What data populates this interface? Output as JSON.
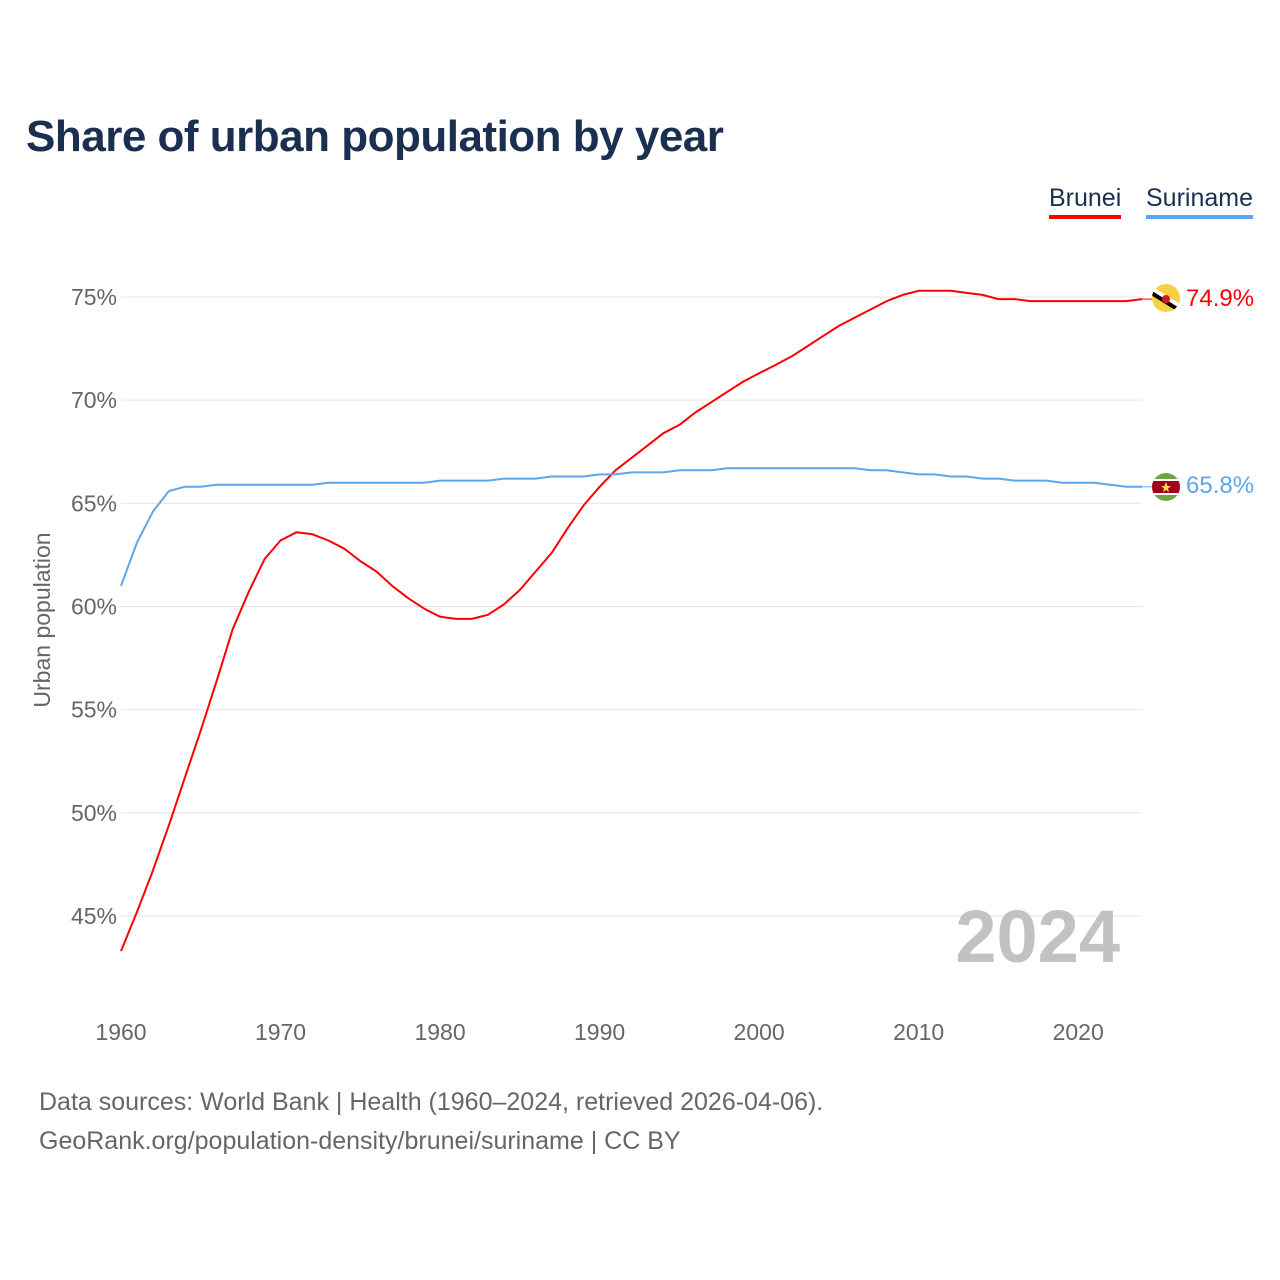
{
  "title": "Share of urban population by year",
  "legend": [
    {
      "label": "Brunei",
      "color": "#ff0000"
    },
    {
      "label": "Suriname",
      "color": "#5ea6ec"
    }
  ],
  "watermark_year": "2024",
  "footer": {
    "line1": "Data sources: World Bank | Health (1960–2024, retrieved 2026-04-06).",
    "line2": "GeoRank.org/population-density/brunei/suriname | CC BY"
  },
  "chart_data": {
    "type": "line",
    "title": "Share of urban population by year",
    "xlabel": "",
    "ylabel": "Urban population",
    "xlim": [
      1960,
      2024
    ],
    "ylim": [
      45,
      75
    ],
    "x_ticks": [
      1960,
      1970,
      1980,
      1990,
      2000,
      2010,
      2020
    ],
    "y_ticks": [
      45,
      50,
      55,
      60,
      65,
      70,
      75
    ],
    "y_tick_labels": [
      "45%",
      "50%",
      "55%",
      "60%",
      "65%",
      "70%",
      "75%"
    ],
    "grid": "horizontal",
    "legend_position": "top-right",
    "x": [
      1960,
      1961,
      1962,
      1963,
      1964,
      1965,
      1966,
      1967,
      1968,
      1969,
      1970,
      1971,
      1972,
      1973,
      1974,
      1975,
      1976,
      1977,
      1978,
      1979,
      1980,
      1981,
      1982,
      1983,
      1984,
      1985,
      1986,
      1987,
      1988,
      1989,
      1990,
      1991,
      1992,
      1993,
      1994,
      1995,
      1996,
      1997,
      1998,
      1999,
      2000,
      2001,
      2002,
      2003,
      2004,
      2005,
      2006,
      2007,
      2008,
      2009,
      2010,
      2011,
      2012,
      2013,
      2014,
      2015,
      2016,
      2017,
      2018,
      2019,
      2020,
      2021,
      2022,
      2023,
      2024
    ],
    "series": [
      {
        "name": "Brunei",
        "color": "#ff0000",
        "end_label": "74.9%",
        "values": [
          43.3,
          45.2,
          47.2,
          49.4,
          51.7,
          54.0,
          56.4,
          58.9,
          60.7,
          62.3,
          63.2,
          63.6,
          63.5,
          63.2,
          62.8,
          62.2,
          61.7,
          61.0,
          60.4,
          59.9,
          59.5,
          59.4,
          59.4,
          59.6,
          60.1,
          60.8,
          61.7,
          62.6,
          63.8,
          64.9,
          65.8,
          66.6,
          67.2,
          67.8,
          68.4,
          68.8,
          69.4,
          69.9,
          70.4,
          70.9,
          71.3,
          71.7,
          72.1,
          72.6,
          73.1,
          73.6,
          74.0,
          74.4,
          74.8,
          75.1,
          75.3,
          75.3,
          75.3,
          75.2,
          75.1,
          74.9,
          74.9,
          74.8,
          74.8,
          74.8,
          74.8,
          74.8,
          74.8,
          74.8,
          74.9
        ]
      },
      {
        "name": "Suriname",
        "color": "#5ea6ec",
        "end_label": "65.8%",
        "values": [
          61.0,
          63.1,
          64.6,
          65.6,
          65.8,
          65.8,
          65.9,
          65.9,
          65.9,
          65.9,
          65.9,
          65.9,
          65.9,
          66.0,
          66.0,
          66.0,
          66.0,
          66.0,
          66.0,
          66.0,
          66.1,
          66.1,
          66.1,
          66.1,
          66.2,
          66.2,
          66.2,
          66.3,
          66.3,
          66.3,
          66.4,
          66.4,
          66.5,
          66.5,
          66.5,
          66.6,
          66.6,
          66.6,
          66.7,
          66.7,
          66.7,
          66.7,
          66.7,
          66.7,
          66.7,
          66.7,
          66.7,
          66.6,
          66.6,
          66.5,
          66.4,
          66.4,
          66.3,
          66.3,
          66.2,
          66.2,
          66.1,
          66.1,
          66.1,
          66.0,
          66.0,
          66.0,
          65.9,
          65.8,
          65.8
        ]
      }
    ]
  }
}
